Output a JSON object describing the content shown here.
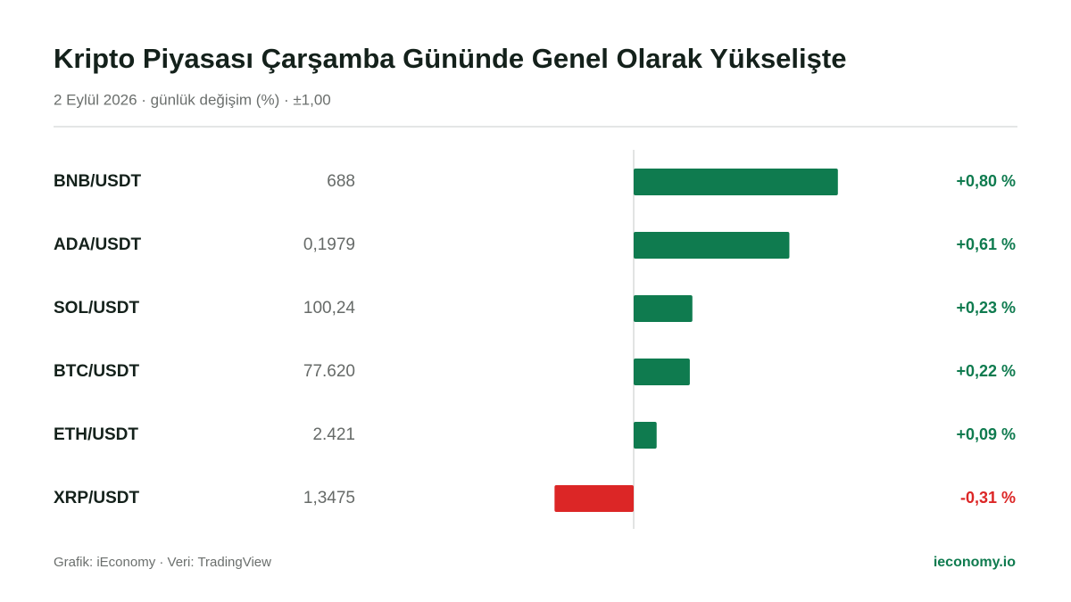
{
  "chart_data": {
    "type": "bar",
    "orientation": "horizontal",
    "title": "Kripto Piyasası Çarşamba Gününde Genel Olarak Yükselişte",
    "subtitle": "2 Eylül 2026 · günlük değişim (%) · ±1,00",
    "categories": [
      "BNB/USDT",
      "ADA/USDT",
      "SOL/USDT",
      "BTC/USDT",
      "ETH/USDT",
      "XRP/USDT"
    ],
    "prices": [
      "688",
      "0,1979",
      "100,24",
      "77.620",
      "2.421",
      "1,3475"
    ],
    "values": [
      0.8,
      0.61,
      0.23,
      0.22,
      0.09,
      -0.31
    ],
    "value_labels": [
      "+0,80 %",
      "+0,61 %",
      "+0,23 %",
      "+0,22 %",
      "+0,09 %",
      "-0,31 %"
    ],
    "xlim": [
      -1,
      1
    ],
    "color_positive": "#0f7b4f",
    "color_negative": "#dc2626",
    "footer_left": "Grafik: iEconomy · Veri: TradingView",
    "footer_right": "ieconomy.io"
  }
}
